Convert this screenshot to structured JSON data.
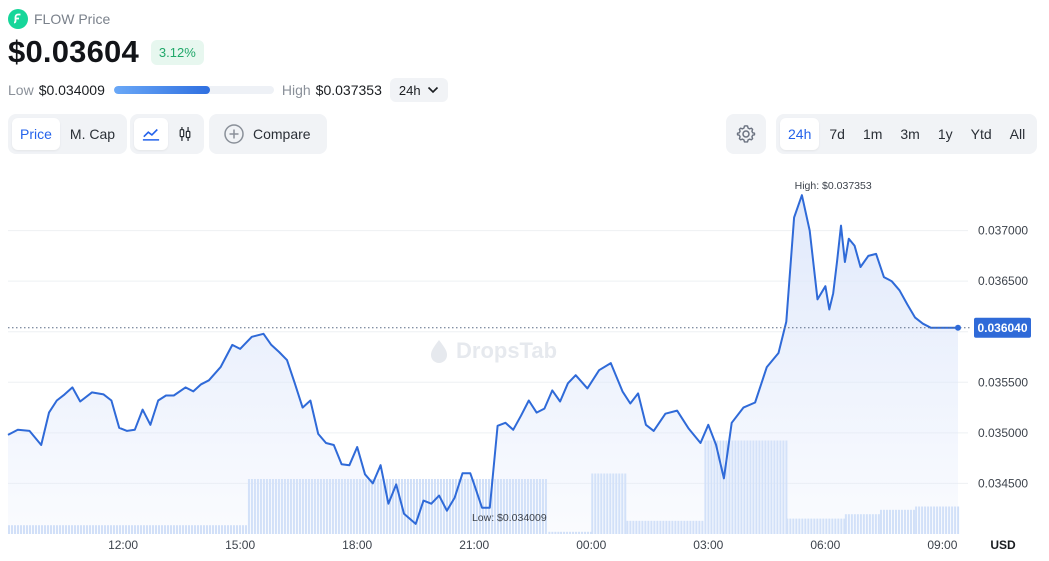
{
  "token": {
    "name": "FLOW Price",
    "price": "$0.03604",
    "change": "3.12%"
  },
  "range": {
    "low_label": "Low",
    "low_value": "$0.034009",
    "high_label": "High",
    "high_value": "$0.037353",
    "period": "24h",
    "position_fraction": 0.6
  },
  "toolbar": {
    "price_tab": "Price",
    "mcap_tab": "M. Cap",
    "compare_label": "Compare",
    "timeframes": [
      "24h",
      "7d",
      "1m",
      "3m",
      "1y",
      "Ytd",
      "All"
    ],
    "active_timeframe": "24h"
  },
  "watermark": "DropsTab",
  "colors": {
    "line": "#2f6ad8",
    "area": "#dfe8fb",
    "volume": "#cfdff8",
    "positive": "#21a86a",
    "accent": "#2563eb"
  },
  "chart_data": {
    "type": "line",
    "title": "",
    "xlabel": "",
    "ylabel": "",
    "currency_label": "USD",
    "x_ticks": [
      "12:00",
      "15:00",
      "18:00",
      "21:00",
      "00:00",
      "03:00",
      "06:00",
      "09:00"
    ],
    "y_ticks": [
      0.0345,
      0.035,
      0.0355,
      0.036,
      0.0365,
      0.037
    ],
    "y_tick_labels": [
      "0.034500",
      "0.035000",
      "0.035500",
      "0.036000",
      "0.036500",
      "0.037000"
    ],
    "ylim": [
      0.034,
      0.03755
    ],
    "x_range_hours": [
      9.05,
      33.4
    ],
    "grid": true,
    "current_price": 0.03604,
    "current_label": "0.036040",
    "annotations": {
      "high": "High: $0.037353",
      "low": "Low: $0.034009"
    },
    "series": [
      {
        "x": [
          9.05,
          9.3,
          9.6,
          9.9,
          10.1,
          10.3,
          10.5,
          10.7,
          10.9,
          11.2,
          11.5,
          11.7,
          11.9,
          12.1,
          12.3,
          12.5,
          12.7,
          12.9,
          13.1,
          13.3,
          13.6,
          13.8,
          14.0,
          14.2,
          14.5,
          14.8,
          15.0,
          15.3,
          15.6,
          15.8,
          16.0,
          16.2,
          16.4,
          16.6,
          16.8,
          17.0,
          17.2,
          17.4,
          17.6,
          17.8,
          18.0,
          18.2,
          18.4,
          18.6,
          18.8,
          19.0,
          19.2,
          19.5,
          19.7,
          19.9,
          20.1,
          20.3,
          20.5,
          20.7,
          20.9,
          21.0,
          21.2,
          21.4,
          21.6,
          21.8,
          22.0,
          22.2,
          22.4,
          22.6,
          22.8,
          23.0,
          23.2,
          23.4,
          23.6,
          23.9,
          24.2,
          24.5,
          24.8,
          25.0,
          25.2,
          25.4,
          25.6,
          25.9,
          26.2,
          26.5,
          26.8,
          27.0,
          27.2,
          27.4,
          27.6,
          27.9,
          28.2,
          28.5,
          28.8,
          29.0,
          29.2,
          29.4,
          29.6,
          29.8,
          30.0,
          30.1,
          30.2,
          30.3,
          30.4,
          30.5,
          30.6,
          30.75,
          30.9,
          31.1,
          31.3,
          31.5,
          31.7,
          31.9,
          32.1,
          32.3,
          32.5,
          32.7,
          32.9,
          33.1,
          33.3,
          33.4
        ],
        "y": [
          0.03498,
          0.03503,
          0.03502,
          0.03488,
          0.0352,
          0.03532,
          0.03538,
          0.03545,
          0.03531,
          0.0354,
          0.03538,
          0.03532,
          0.03505,
          0.03502,
          0.03503,
          0.03523,
          0.03508,
          0.03532,
          0.03537,
          0.03537,
          0.03545,
          0.03541,
          0.03548,
          0.03552,
          0.03565,
          0.03587,
          0.03583,
          0.03595,
          0.03598,
          0.03587,
          0.0358,
          0.03572,
          0.03549,
          0.03525,
          0.03532,
          0.03499,
          0.0349,
          0.03488,
          0.03469,
          0.03468,
          0.03486,
          0.03459,
          0.0345,
          0.03468,
          0.0343,
          0.03449,
          0.0342,
          0.0341,
          0.03433,
          0.0343,
          0.03438,
          0.03423,
          0.03436,
          0.0346,
          0.0346,
          0.03449,
          0.03426,
          0.03426,
          0.03507,
          0.0351,
          0.03503,
          0.03517,
          0.03532,
          0.0352,
          0.03524,
          0.03542,
          0.03531,
          0.03549,
          0.03557,
          0.03544,
          0.03562,
          0.03569,
          0.03541,
          0.03529,
          0.03539,
          0.03508,
          0.03502,
          0.03519,
          0.03522,
          0.03504,
          0.0349,
          0.03508,
          0.03488,
          0.03455,
          0.0351,
          0.03525,
          0.0353,
          0.03565,
          0.03579,
          0.0361,
          0.03713,
          0.03735,
          0.037,
          0.03632,
          0.03645,
          0.03622,
          0.03638,
          0.0367,
          0.03705,
          0.03669,
          0.03692,
          0.03685,
          0.03664,
          0.03675,
          0.03677,
          0.03654,
          0.0365,
          0.03641,
          0.03627,
          0.03614,
          0.03608,
          0.03604,
          0.03604,
          0.03604,
          0.03604,
          0.03604
        ]
      }
    ],
    "volume": {
      "x_start": [
        9.05,
        15.2,
        22.9,
        23.2,
        24.0,
        24.9,
        26.9,
        29.0,
        30.5,
        31.4,
        32.3
      ],
      "x_end": [
        15.2,
        22.9,
        23.2,
        24.0,
        24.9,
        26.9,
        29.0,
        30.5,
        31.4,
        32.3,
        33.4
      ],
      "value": [
        0.08,
        0.5,
        0.02,
        0.02,
        0.55,
        0.12,
        0.85,
        0.14,
        0.18,
        0.22,
        0.25
      ]
    }
  }
}
